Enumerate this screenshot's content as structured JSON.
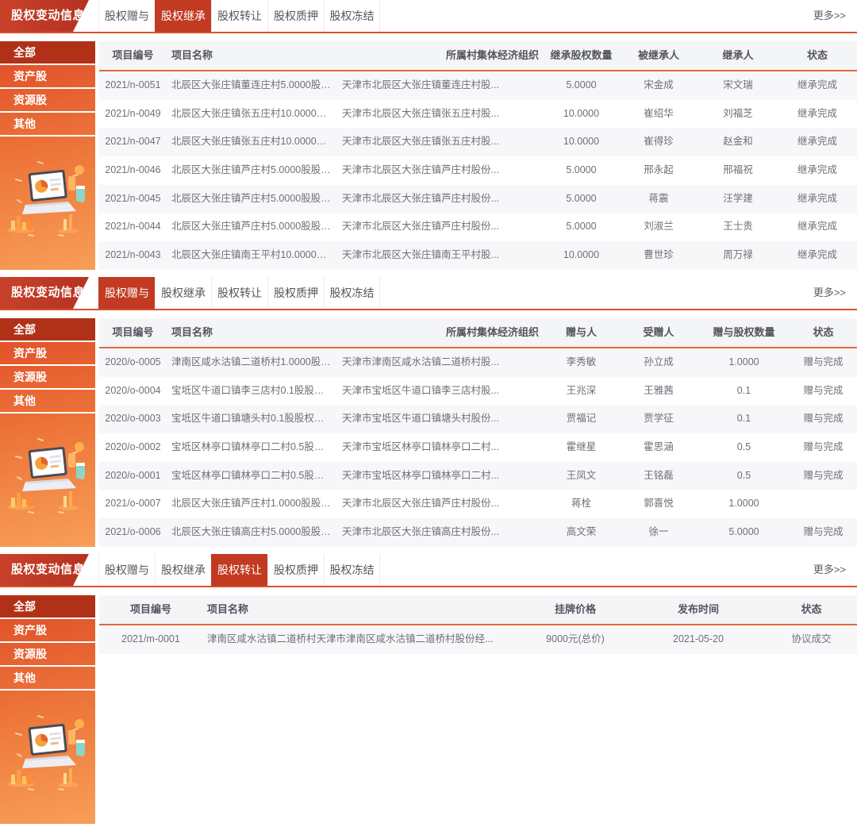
{
  "page": {
    "banner_title": "股权变动信息",
    "more_label": "更多>>",
    "tabs": [
      "股权赠与",
      "股权继承",
      "股权转让",
      "股权质押",
      "股权冻结"
    ],
    "sidebar_items": [
      "全部",
      "资产股",
      "资源股",
      "其他"
    ],
    "icons": {
      "sidebar_illustration": "laptop-analytics-illustration"
    },
    "colors": {
      "banner_red": "#bf3a24",
      "active_tab_red": "#c23a22",
      "tabbar_underline": "#d8512e",
      "table_header_underline": "#e0693f",
      "sidebar_gradient_top": "#e04a26",
      "sidebar_gradient_bottom": "#f89e58",
      "sidebar_active_item": "#b03118",
      "row_stripe": "#f7f7f9"
    }
  },
  "sections": [
    {
      "active_tab": 1,
      "active_tab_label": "股权继承",
      "columns": [
        "项目编号",
        "项目名称",
        "所属村集体经济组织",
        "继承股权数量",
        "被继承人",
        "继承人",
        "状态"
      ],
      "rows": [
        [
          "2021/n-0051",
          "北辰区大张庄镇董连庄村5.0000股股权继...",
          "天津市北辰区大张庄镇董连庄村股...",
          "5.0000",
          "宋金成",
          "宋文瑞",
          "继承完成"
        ],
        [
          "2021/n-0049",
          "北辰区大张庄镇张五庄村10.0000股股权继...",
          "天津市北辰区大张庄镇张五庄村股...",
          "10.0000",
          "崔绍华",
          "刘福芝",
          "继承完成"
        ],
        [
          "2021/n-0047",
          "北辰区大张庄镇张五庄村10.0000股股权继...",
          "天津市北辰区大张庄镇张五庄村股...",
          "10.0000",
          "崔得珍",
          "赵金和",
          "继承完成"
        ],
        [
          "2021/n-0046",
          "北辰区大张庄镇芦庄村5.0000股股权继承...",
          "天津市北辰区大张庄镇芦庄村股份...",
          "5.0000",
          "邢永起",
          "邢福祝",
          "继承完成"
        ],
        [
          "2021/n-0045",
          "北辰区大张庄镇芦庄村5.0000股股权继承...",
          "天津市北辰区大张庄镇芦庄村股份...",
          "5.0000",
          "蒋震",
          "汪学建",
          "继承完成"
        ],
        [
          "2021/n-0044",
          "北辰区大张庄镇芦庄村5.0000股股权继承...",
          "天津市北辰区大张庄镇芦庄村股份...",
          "5.0000",
          "刘淑兰",
          "王士贵",
          "继承完成"
        ],
        [
          "2021/n-0043",
          "北辰区大张庄镇南王平村10.0000股股权继...",
          "天津市北辰区大张庄镇南王平村股...",
          "10.0000",
          "曹世珍",
          "周万禄",
          "继承完成"
        ]
      ]
    },
    {
      "active_tab": 0,
      "active_tab_label": "股权赠与",
      "columns": [
        "项目编号",
        "项目名称",
        "所属村集体经济组织",
        "赠与人",
        "受赠人",
        "赠与股权数量",
        "状态"
      ],
      "rows": [
        [
          "2020/o-0005",
          "津南区咸水沽镇二道桥村1.0000股股权赠...",
          "天津市津南区咸水沽镇二道桥村股...",
          "李秀敏",
          "孙立成",
          "1.0000",
          "赠与完成"
        ],
        [
          "2020/o-0004",
          "宝坻区牛道口镇李三店村0.1股股权赠与项目",
          "天津市宝坻区牛道口镇李三店村股...",
          "王兆深",
          "王雅茜",
          "0.1",
          "赠与完成"
        ],
        [
          "2020/o-0003",
          "宝坻区牛道口镇塘头村0.1股股权赠与项目",
          "天津市宝坻区牛道口镇塘头村股份...",
          "贾福记",
          "贾学征",
          "0.1",
          "赠与完成"
        ],
        [
          "2020/o-0002",
          "宝坻区林亭口镇林亭口二村0.5股股权赠与...",
          "天津市宝坻区林亭口镇林亭口二村...",
          "霍继星",
          "霍思涵",
          "0.5",
          "赠与完成"
        ],
        [
          "2020/o-0001",
          "宝坻区林亭口镇林亭口二村0.5股股权赠与...",
          "天津市宝坻区林亭口镇林亭口二村...",
          "王凤文",
          "王铭磊",
          "0.5",
          "赠与完成"
        ],
        [
          "2021/o-0007",
          "北辰区大张庄镇芦庄村1.0000股股权赠与...",
          "天津市北辰区大张庄镇芦庄村股份...",
          "蒋栓",
          "郭喜悦",
          "1.0000",
          ""
        ],
        [
          "2021/o-0006",
          "北辰区大张庄镇高庄村5.0000股股权赠与...",
          "天津市北辰区大张庄镇高庄村股份...",
          "高文荣",
          "徐一",
          "5.0000",
          "赠与完成"
        ]
      ]
    },
    {
      "active_tab": 2,
      "active_tab_label": "股权转让",
      "columns": [
        "项目编号",
        "项目名称",
        "挂牌价格",
        "发布时间",
        "状态"
      ],
      "rows": [
        [
          "2021/m-0001",
          "津南区咸水沽镇二道桥村天津市津南区咸水沽镇二道桥村股份经...",
          "9000元(总价)",
          "2021-05-20",
          "协议成交"
        ]
      ]
    }
  ]
}
